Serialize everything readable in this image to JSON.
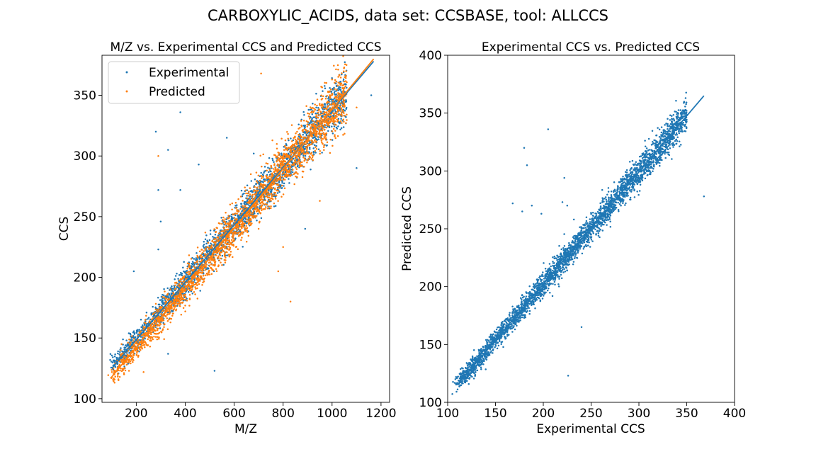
{
  "suptitle": "CARBOXYLIC_ACIDS, data set: CCSBASE, tool: ALLCCS",
  "colors": {
    "experimental": "#1f77b4",
    "predicted": "#ff7f0e"
  },
  "chart_data": [
    {
      "type": "scatter",
      "title": "M/Z vs. Experimental CCS and Predicted CCS",
      "xlabel": "M/Z",
      "ylabel": "CCS",
      "xlim": [
        60,
        1235
      ],
      "ylim": [
        97,
        383
      ],
      "xticks": [
        200,
        400,
        600,
        800,
        1000,
        1200
      ],
      "yticks": [
        100,
        150,
        200,
        250,
        300,
        350
      ],
      "legend": {
        "placement": "top-left",
        "entries": [
          "Experimental",
          "Predicted"
        ]
      },
      "grid": false,
      "series": [
        {
          "name": "Experimental",
          "color": "#1f77b4",
          "trend": {
            "x": [
              100,
              1170
            ],
            "y": [
              125,
              378
            ]
          },
          "outliers": [
            [
              380,
              336
            ],
            [
              280,
              320
            ],
            [
              570,
              315
            ],
            [
              330,
              305
            ],
            [
              680,
              302
            ],
            [
              455,
              293
            ],
            [
              290,
              272
            ],
            [
              380,
              272
            ],
            [
              300,
              246
            ],
            [
              890,
              240
            ],
            [
              290,
              223
            ],
            [
              190,
              205
            ],
            [
              1100,
              290
            ],
            [
              1040,
              345
            ],
            [
              1160,
              350
            ],
            [
              160,
              148
            ],
            [
              520,
              123
            ],
            [
              330,
              137
            ]
          ]
        },
        {
          "name": "Predicted",
          "color": "#ff7f0e",
          "trend": {
            "x": [
              100,
              1170
            ],
            "y": [
              118,
              380
            ]
          },
          "outliers": [
            [
              710,
              368
            ],
            [
              800,
              225
            ],
            [
              830,
              180
            ],
            [
              700,
              240
            ],
            [
              620,
              235
            ],
            [
              230,
              122
            ],
            [
              1020,
              330
            ],
            [
              1100,
              340
            ],
            [
              950,
              263
            ],
            [
              780,
              205
            ],
            [
              140,
              145
            ],
            [
              290,
              300
            ]
          ]
        }
      ]
    },
    {
      "type": "scatter",
      "title": "Experimental CCS vs. Predicted CCS",
      "xlabel": "Experimental CCS",
      "ylabel": "Predicted CCS",
      "xlim": [
        100,
        400
      ],
      "ylim": [
        100,
        400
      ],
      "xticks": [
        100,
        150,
        200,
        250,
        300,
        350,
        400
      ],
      "yticks": [
        100,
        150,
        200,
        250,
        300,
        350,
        400
      ],
      "grid": false,
      "series": [
        {
          "name": "",
          "color": "#1f77b4",
          "trend": {
            "x": [
              110,
              368
            ],
            "y": [
              115,
              365
            ]
          },
          "outliers": [
            [
              205,
              336
            ],
            [
              180,
              320
            ],
            [
              183,
              305
            ],
            [
              222,
              294
            ],
            [
              220,
              273
            ],
            [
              168,
              272
            ],
            [
              188,
              270
            ],
            [
              178,
              265
            ],
            [
              232,
              258
            ],
            [
              198,
              263
            ],
            [
              368,
              278
            ],
            [
              257,
              248
            ],
            [
              240,
              165
            ],
            [
              226,
              123
            ],
            [
              235,
              225
            ],
            [
              225,
              270
            ],
            [
              330,
              345
            ],
            [
              345,
              340
            ]
          ]
        }
      ]
    }
  ]
}
